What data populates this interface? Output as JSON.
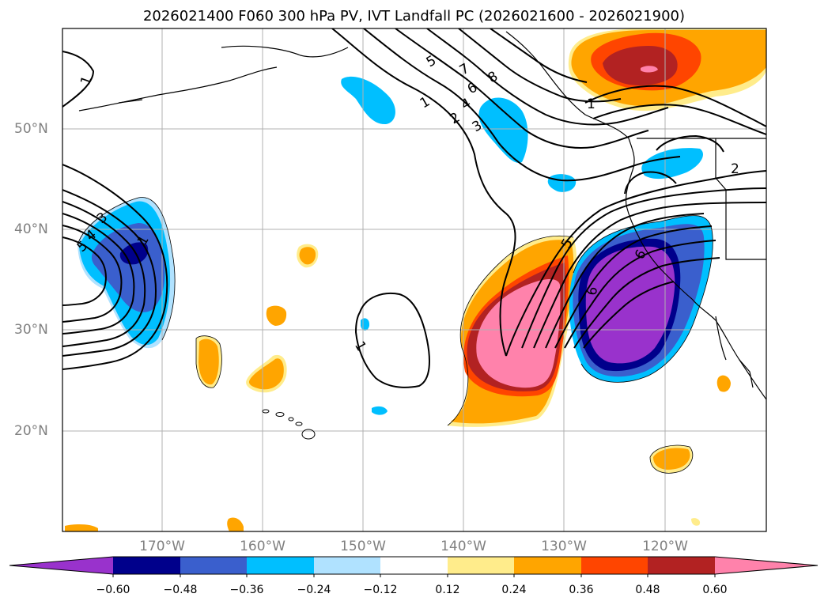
{
  "title": "2026021400 F060 300 hPa PV, IVT Landfall PC (2026021600 - 2026021900)",
  "map": {
    "lat_labels": [
      "50°N",
      "40°N",
      "30°N",
      "20°N"
    ],
    "lon_labels": [
      "170°W",
      "160°W",
      "150°W",
      "140°W",
      "130°W",
      "120°W"
    ],
    "contour_labels": [
      "1",
      "1",
      "2",
      "3",
      "4",
      "5",
      "6",
      "7",
      "8",
      "1",
      "2",
      "3",
      "4",
      "5",
      "1",
      "5",
      "6",
      "6"
    ]
  },
  "colorbar": {
    "ticks": [
      "−0.60",
      "−0.48",
      "−0.36",
      "−0.24",
      "−0.12",
      "0.12",
      "0.24",
      "0.36",
      "0.48",
      "0.60"
    ],
    "colors": [
      "#9932CC",
      "#00008B",
      "#3A5FCD",
      "#00BFFF",
      "#B0E2FF",
      "#FFFFFF",
      "#FFEC8B",
      "#FFA500",
      "#FF4500",
      "#B22222",
      "#FF82AB"
    ],
    "extend": "both"
  }
}
